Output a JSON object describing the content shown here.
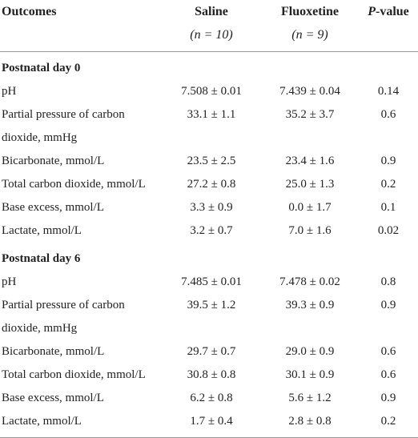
{
  "table": {
    "header": [
      "Outcomes",
      "Saline",
      "Fluoxetine",
      "P-value"
    ],
    "subheader": [
      "(n = 10)",
      "(n = 9)"
    ],
    "sections": [
      {
        "title": "Postnatal day 0",
        "rows": [
          [
            "pH",
            "7.508 ± 0.01",
            "7.439 ± 0.04",
            "0.14"
          ],
          [
            "Partial pressure of carbon dioxide, mmHg",
            "33.1 ± 1.1",
            "35.2 ± 3.7",
            "0.6"
          ],
          [
            "Bicarbonate, mmol/L",
            "23.5 ± 2.5",
            "23.4 ± 1.6",
            "0.9"
          ],
          [
            "Total carbon dioxide, mmol/L",
            "27.2 ± 0.8",
            "25.0 ± 1.3",
            "0.2"
          ],
          [
            "Base excess, mmol/L",
            "3.3 ± 0.9",
            "0.0 ± 1.7",
            "0.1"
          ],
          [
            "Lactate, mmol/L",
            "3.2 ± 0.7",
            "7.0 ± 1.6",
            "0.02"
          ]
        ]
      },
      {
        "title": "Postnatal day 6",
        "rows": [
          [
            "pH",
            "7.485 ± 0.01",
            "7.478 ± 0.02",
            "0.8"
          ],
          [
            "Partial pressure of carbon dioxide, mmHg",
            "39.5 ± 1.2",
            "39.3 ± 0.9",
            "0.9"
          ],
          [
            "Bicarbonate, mmol/L",
            "29.7 ± 0.7",
            "29.0 ± 0.9",
            "0.6"
          ],
          [
            "Total carbon dioxide, mmol/L",
            "30.8 ± 0.8",
            "30.1 ± 0.9",
            "0.6"
          ],
          [
            "Base excess, mmol/L",
            "6.2 ± 0.8",
            "5.6 ± 1.2",
            "0.9"
          ],
          [
            "Lactate, mmol/L",
            "1.7 ± 0.4",
            "2.8 ± 0.8",
            "0.2"
          ]
        ]
      }
    ]
  }
}
